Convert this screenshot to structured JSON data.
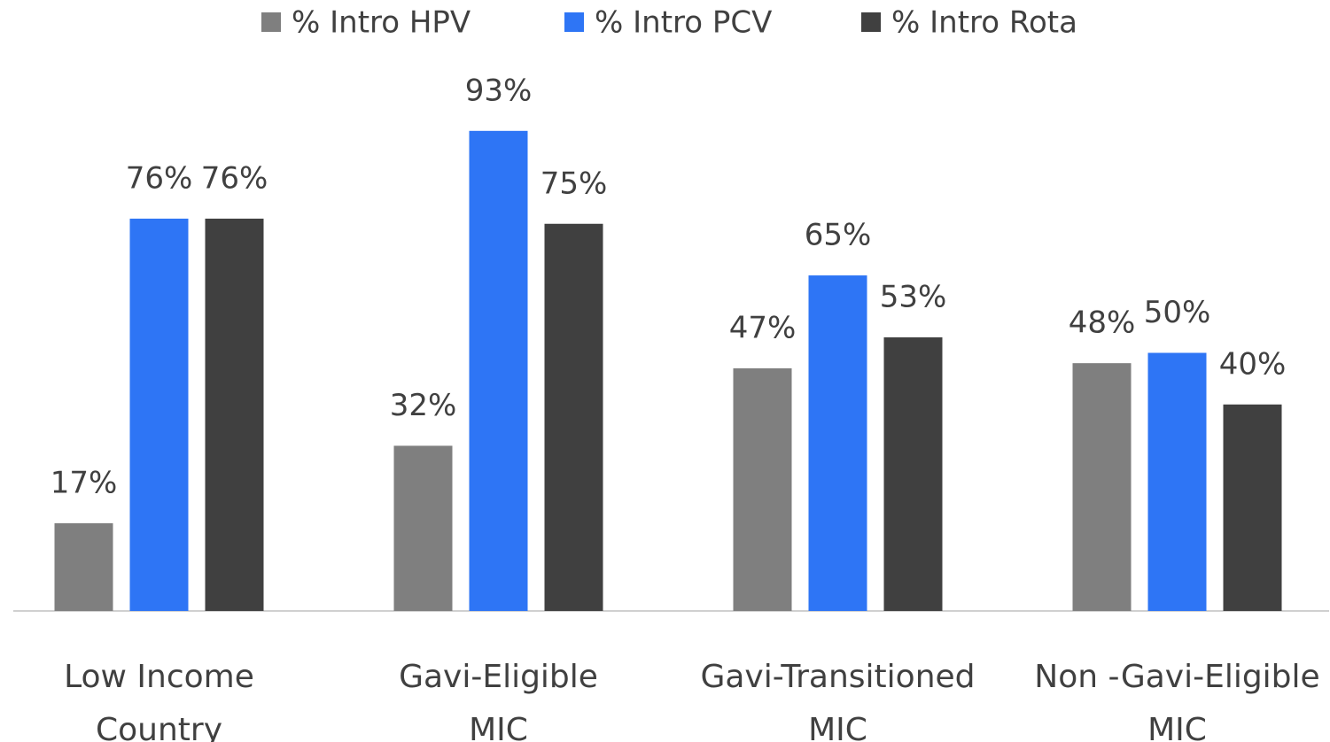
{
  "chart_data": {
    "type": "bar",
    "categories": [
      "Low Income Country",
      "Gavi-Eligible MIC",
      "Gavi-Transitioned MIC",
      "Non -Gavi-Eligible MIC"
    ],
    "series": [
      {
        "name": "% Intro HPV",
        "color": "#7f7f7f",
        "values": [
          17,
          32,
          47,
          48
        ],
        "value_labels": [
          "17%",
          "32%",
          "47%",
          "48%"
        ]
      },
      {
        "name": "% Intro PCV",
        "color": "#2e75f5",
        "values": [
          76,
          93,
          65,
          50
        ],
        "value_labels": [
          "76%",
          "93%",
          "65%",
          "50%"
        ]
      },
      {
        "name": "% Intro Rota",
        "color": "#404040",
        "values": [
          76,
          75,
          53,
          40
        ],
        "value_labels": [
          "76%",
          "75%",
          "53%",
          "40%"
        ]
      }
    ],
    "ylim": [
      0,
      100
    ],
    "legend": "top"
  }
}
